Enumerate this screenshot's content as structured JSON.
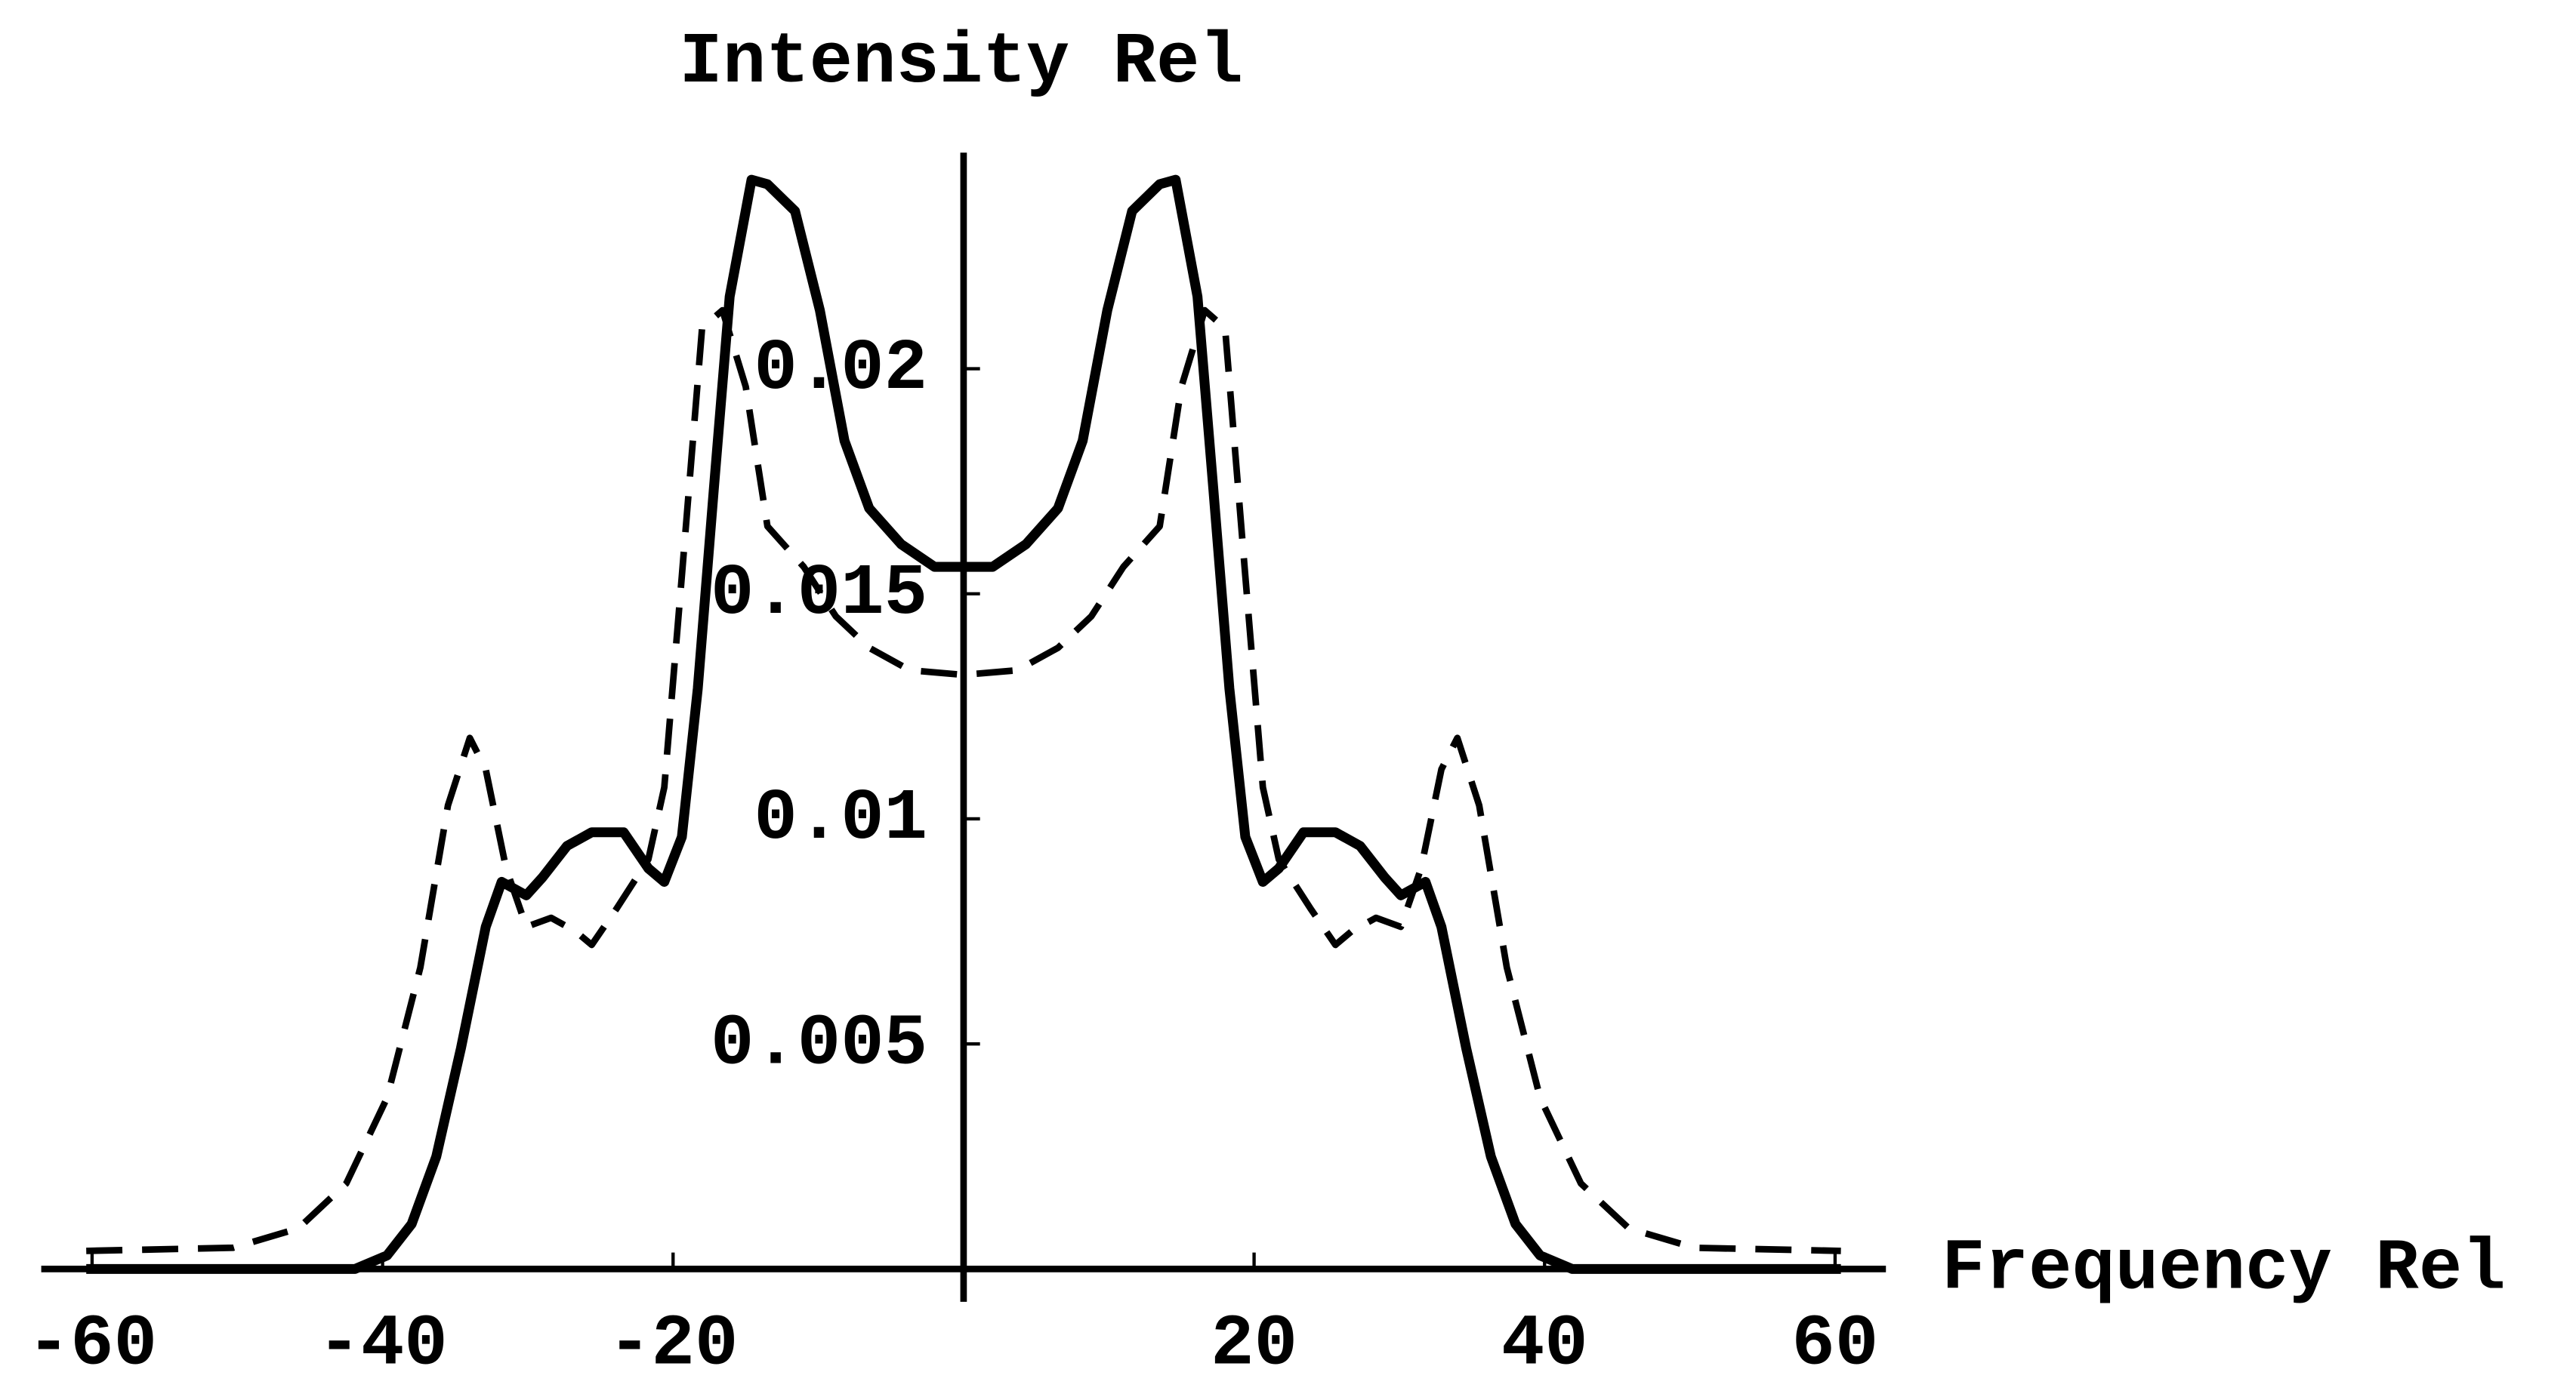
{
  "chart_data": {
    "type": "line",
    "xlabel": "Frequency Rel",
    "ylabel": "Intensity Rel",
    "xlim": [
      -63.5,
      63.5
    ],
    "ylim": [
      0,
      0.0248
    ],
    "xticks": [
      -60,
      -40,
      -20,
      20,
      40,
      60
    ],
    "yticks": [
      0.005,
      0.01,
      0.015,
      0.02
    ],
    "series": [
      {
        "color": "#000000",
        "dash": false,
        "x": [
          -60.4,
          -41.9,
          -39.7,
          -38,
          -36.3,
          -34.6,
          -32.9,
          -31.8,
          -30.1,
          -29,
          -27.3,
          -25.6,
          -23.4,
          -21.7,
          -20.6,
          -19.4,
          -18.3,
          -17.2,
          -16.1,
          -14.6,
          -13.5,
          -11.6,
          -9.9,
          -8.2,
          -6.5,
          -4.3,
          -2,
          0,
          2,
          4.3,
          6.5,
          8.2,
          9.9,
          11.6,
          13.5,
          14.6,
          16.1,
          17.2,
          18.3,
          19.4,
          20.6,
          21.7,
          23.4,
          25.6,
          27.3,
          29,
          30.1,
          31.8,
          32.9,
          34.6,
          36.3,
          38,
          39.7,
          41.9,
          60.4
        ],
        "values": [
          0,
          0,
          0.0003,
          0.001,
          0.0025,
          0.0049,
          0.0076,
          0.0086,
          0.0083,
          0.0087,
          0.0094,
          0.0097,
          0.0097,
          0.0089,
          0.0086,
          0.0096,
          0.0129,
          0.0173,
          0.0216,
          0.0242,
          0.0241,
          0.0235,
          0.0213,
          0.0184,
          0.0169,
          0.0161,
          0.0156,
          0.0156,
          0.0156,
          0.0161,
          0.0169,
          0.0184,
          0.0213,
          0.0235,
          0.0241,
          0.0242,
          0.0216,
          0.0173,
          0.0129,
          0.0096,
          0.0086,
          0.0089,
          0.0097,
          0.0097,
          0.0094,
          0.0087,
          0.0083,
          0.0086,
          0.0076,
          0.0049,
          0.0025,
          0.001,
          0.0003,
          0,
          0
        ]
      },
      {
        "color": "#000000",
        "dash": true,
        "x": [
          -60.4,
          -50.3,
          -45.8,
          -42.5,
          -39.7,
          -37.4,
          -35.5,
          -34,
          -32.9,
          -31.5,
          -30.1,
          -28.4,
          -26.7,
          -25.6,
          -23.9,
          -21.7,
          -20.6,
          -19.4,
          -18,
          -16.6,
          -15,
          -13.5,
          -11,
          -8.8,
          -6.5,
          -3.7,
          0,
          3.7,
          6.5,
          8.8,
          11,
          13.5,
          15,
          16.6,
          18,
          19.4,
          20.6,
          21.7,
          23.9,
          25.6,
          26.7,
          28.4,
          30.1,
          31.5,
          32.9,
          34,
          35.5,
          37.4,
          39.7,
          42.5,
          45.8,
          50.3,
          60.4
        ],
        "values": [
          0.0004,
          0.00047,
          0.0009,
          0.0019,
          0.0038,
          0.0067,
          0.0103,
          0.0118,
          0.0111,
          0.0089,
          0.0076,
          0.0078,
          0.0075,
          0.0072,
          0.008,
          0.0091,
          0.0107,
          0.0154,
          0.0209,
          0.0213,
          0.0196,
          0.0165,
          0.0156,
          0.0145,
          0.0138,
          0.0133,
          0.0132,
          0.0133,
          0.0138,
          0.0145,
          0.0156,
          0.0165,
          0.0196,
          0.0213,
          0.0209,
          0.0154,
          0.0107,
          0.0091,
          0.008,
          0.0072,
          0.0075,
          0.0078,
          0.0076,
          0.0089,
          0.0111,
          0.0118,
          0.0103,
          0.0067,
          0.0038,
          0.0019,
          0.0009,
          0.00047,
          0.0004
        ]
      }
    ]
  }
}
